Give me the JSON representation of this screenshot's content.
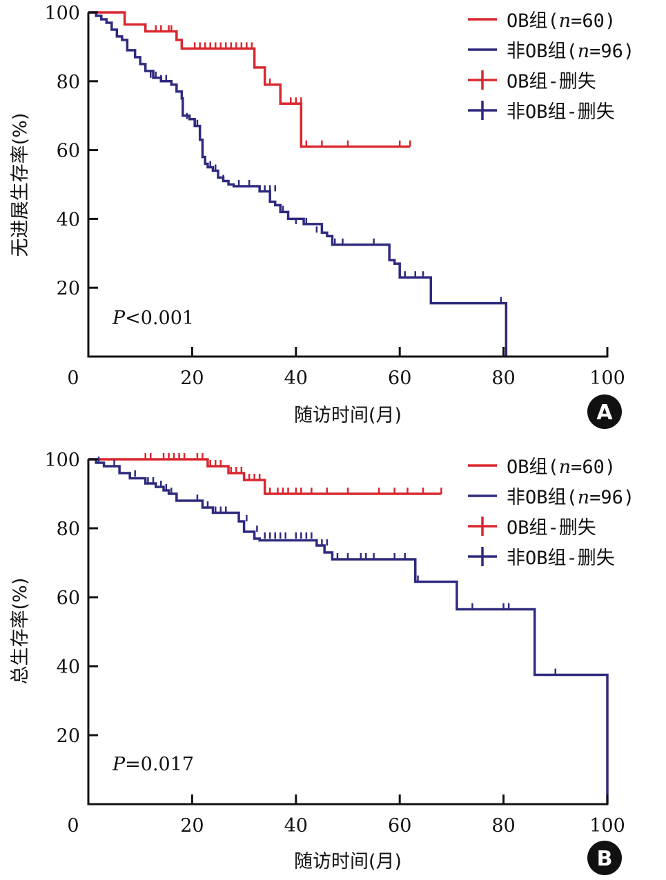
{
  "colors": {
    "ob": "#d9272e",
    "non_ob": "#2e2a7e",
    "axis": "#111111"
  },
  "chart_data": [
    {
      "type": "line",
      "subtype": "kaplan-meier",
      "panel_label": "A",
      "ylabel": "无进展生存率(%)",
      "xlabel": "随访时间(月)",
      "xlim": [
        0,
        100
      ],
      "ylim": [
        0,
        100
      ],
      "x_ticks": [
        0,
        20,
        40,
        60,
        80,
        100
      ],
      "x_tick_labels": [
        "0",
        "20",
        "40",
        "60",
        "80",
        "100"
      ],
      "y_ticks": [
        20,
        40,
        60,
        80,
        100
      ],
      "y_tick_labels": [
        "20",
        "40",
        "60",
        "80",
        "100"
      ],
      "annotation": {
        "p_label": "P",
        "p_rest": "<0.001"
      },
      "legend": {
        "position": "top-right",
        "entries": [
          {
            "label": "OB组(n=60)",
            "prefix": "OB组(",
            "italic": "n",
            "suffix": "=60)",
            "kind": "line",
            "series": "ob"
          },
          {
            "label": "非OB组(n=96)",
            "prefix": "非OB组(",
            "italic": "n",
            "suffix": "=96)",
            "kind": "line",
            "series": "non_ob"
          },
          {
            "label": "OB组-删失",
            "prefix": "OB组-删失",
            "italic": "",
            "suffix": "",
            "kind": "cross",
            "series": "ob"
          },
          {
            "label": "非OB组-删失",
            "prefix": "非OB组-删失",
            "italic": "",
            "suffix": "",
            "kind": "cross",
            "series": "non_ob"
          }
        ]
      },
      "series": [
        {
          "name": "OB组",
          "key": "ob",
          "steps": [
            [
              0,
              100
            ],
            [
              7,
              96.5
            ],
            [
              11,
              94.5
            ],
            [
              17,
              92
            ],
            [
              18,
              89.5
            ],
            [
              32,
              84
            ],
            [
              34,
              79
            ],
            [
              37,
              73.5
            ],
            [
              41,
              61
            ]
          ],
          "end": 62,
          "censored": [
            [
              13,
              94.5
            ],
            [
              14,
              94.5
            ],
            [
              15.5,
              94.5
            ],
            [
              16,
              94.5
            ],
            [
              20.5,
              89.5
            ],
            [
              21.5,
              89.5
            ],
            [
              22.5,
              89.5
            ],
            [
              23.5,
              89.5
            ],
            [
              24.5,
              89.5
            ],
            [
              25.5,
              89.5
            ],
            [
              26.5,
              89.5
            ],
            [
              27.5,
              89.5
            ],
            [
              28.5,
              89.5
            ],
            [
              29.5,
              89.5
            ],
            [
              30.5,
              89.5
            ],
            [
              31.5,
              89.5
            ],
            [
              35,
              79
            ],
            [
              39,
              73.5
            ],
            [
              40,
              73.5
            ],
            [
              41,
              73.5
            ],
            [
              42,
              61
            ],
            [
              45,
              61
            ],
            [
              50,
              61
            ],
            [
              60,
              61
            ],
            [
              62,
              61
            ]
          ]
        },
        {
          "name": "非OB组",
          "key": "non_ob",
          "steps": [
            [
              0,
              100
            ],
            [
              1.5,
              99
            ],
            [
              2.5,
              98
            ],
            [
              3.5,
              97
            ],
            [
              4.5,
              95
            ],
            [
              5.5,
              93
            ],
            [
              6.5,
              92
            ],
            [
              7.5,
              89
            ],
            [
              9,
              87
            ],
            [
              10,
              85
            ],
            [
              11,
              83
            ],
            [
              12.5,
              81
            ],
            [
              14,
              80
            ],
            [
              16,
              79
            ],
            [
              17,
              77
            ],
            [
              18,
              75
            ],
            [
              18.2,
              70
            ],
            [
              19.5,
              69
            ],
            [
              20.5,
              67
            ],
            [
              21.5,
              63
            ],
            [
              22,
              58
            ],
            [
              22.5,
              56
            ],
            [
              23,
              55
            ],
            [
              24,
              54
            ],
            [
              25,
              52
            ],
            [
              26,
              51
            ],
            [
              27,
              50
            ],
            [
              28,
              49.5
            ],
            [
              33,
              48
            ],
            [
              35,
              45
            ],
            [
              36,
              44
            ],
            [
              37,
              42
            ],
            [
              38.5,
              40
            ],
            [
              41.5,
              38.5
            ],
            [
              45,
              36
            ],
            [
              46,
              35
            ],
            [
              47,
              32.5
            ],
            [
              54,
              32.5
            ],
            [
              58,
              28
            ],
            [
              59,
              27
            ],
            [
              60,
              23
            ],
            [
              66,
              15.5
            ],
            [
              80.5,
              0
            ]
          ],
          "end": 80.5,
          "censored": [
            [
              12,
              81
            ],
            [
              13,
              81
            ],
            [
              14,
              80
            ],
            [
              15,
              80
            ],
            [
              19,
              69
            ],
            [
              21,
              67
            ],
            [
              23.5,
              55
            ],
            [
              24.5,
              54
            ],
            [
              26,
              51
            ],
            [
              29,
              49.5
            ],
            [
              31,
              49.5
            ],
            [
              34,
              48
            ],
            [
              35,
              48
            ],
            [
              36,
              48
            ],
            [
              37.5,
              42
            ],
            [
              40,
              38.5
            ],
            [
              42,
              38.5
            ],
            [
              44,
              36
            ],
            [
              47.5,
              32.5
            ],
            [
              49,
              32.5
            ],
            [
              55,
              32.5
            ],
            [
              61,
              23
            ],
            [
              63,
              23
            ],
            [
              64.5,
              23
            ],
            [
              79.5,
              15.5
            ]
          ]
        }
      ]
    },
    {
      "type": "line",
      "subtype": "kaplan-meier",
      "panel_label": "B",
      "ylabel": "总生存率(%)",
      "xlabel": "随访时间(月)",
      "xlim": [
        0,
        100
      ],
      "ylim": [
        0,
        100
      ],
      "x_ticks": [
        0,
        20,
        40,
        60,
        80,
        100
      ],
      "x_tick_labels": [
        "0",
        "20",
        "40",
        "60",
        "80",
        "100"
      ],
      "y_ticks": [
        20,
        40,
        60,
        80,
        100
      ],
      "y_tick_labels": [
        "20",
        "40",
        "60",
        "80",
        "100"
      ],
      "annotation": {
        "p_label": "P",
        "p_rest": "=0.017"
      },
      "legend": {
        "position": "top-right",
        "entries": [
          {
            "label": "OB组(n=60)",
            "prefix": "OB组(",
            "italic": "n",
            "suffix": "=60)",
            "kind": "line",
            "series": "ob"
          },
          {
            "label": "非OB组(n=96)",
            "prefix": "非OB组(",
            "italic": "n",
            "suffix": "=96)",
            "kind": "line",
            "series": "non_ob"
          },
          {
            "label": "OB组-删失",
            "prefix": "OB组-删失",
            "italic": "",
            "suffix": "",
            "kind": "cross",
            "series": "ob"
          },
          {
            "label": "非OB组-删失",
            "prefix": "非OB组-删失",
            "italic": "",
            "suffix": "",
            "kind": "cross",
            "series": "non_ob"
          }
        ]
      },
      "series": [
        {
          "name": "OB组",
          "key": "ob",
          "steps": [
            [
              0,
              100
            ],
            [
              23,
              98
            ],
            [
              27,
              96
            ],
            [
              30,
              94
            ],
            [
              34,
              90
            ]
          ],
          "end": 68,
          "censored": [
            [
              11,
              100
            ],
            [
              12,
              100
            ],
            [
              14.5,
              100
            ],
            [
              15.5,
              100
            ],
            [
              16.5,
              100
            ],
            [
              17.5,
              100
            ],
            [
              18.5,
              100
            ],
            [
              21,
              100
            ],
            [
              22,
              100
            ],
            [
              23.5,
              98
            ],
            [
              24.5,
              98
            ],
            [
              25.5,
              98
            ],
            [
              27.5,
              96
            ],
            [
              28.5,
              96
            ],
            [
              29.5,
              96
            ],
            [
              31,
              94
            ],
            [
              32,
              94
            ],
            [
              33,
              94
            ],
            [
              35,
              90
            ],
            [
              36.5,
              90
            ],
            [
              37.5,
              90
            ],
            [
              38.5,
              90
            ],
            [
              40,
              90
            ],
            [
              41,
              90
            ],
            [
              43,
              90
            ],
            [
              46,
              90
            ],
            [
              50,
              90
            ],
            [
              56,
              90
            ],
            [
              59,
              90
            ],
            [
              61.5,
              90
            ],
            [
              64.5,
              90
            ],
            [
              68,
              90
            ]
          ]
        },
        {
          "name": "非OB组",
          "key": "non_ob",
          "steps": [
            [
              0,
              100
            ],
            [
              1.5,
              99
            ],
            [
              3,
              98
            ],
            [
              6,
              96
            ],
            [
              8,
              94.5
            ],
            [
              11,
              93
            ],
            [
              13,
              92
            ],
            [
              14.5,
              91
            ],
            [
              15.5,
              90
            ],
            [
              17,
              88
            ],
            [
              22,
              86
            ],
            [
              24,
              84.5
            ],
            [
              29,
              82
            ],
            [
              30,
              79
            ],
            [
              32,
              77
            ],
            [
              33,
              76.5
            ],
            [
              44,
              75
            ],
            [
              45.5,
              73
            ],
            [
              47,
              71
            ],
            [
              63,
              64.5
            ],
            [
              71,
              56.5
            ],
            [
              86,
              37.5
            ],
            [
              100,
              0
            ]
          ],
          "end": 100,
          "censored": [
            [
              2,
              99
            ],
            [
              5,
              98
            ],
            [
              9,
              95
            ],
            [
              11.5,
              93
            ],
            [
              12.5,
              93
            ],
            [
              14,
              92
            ],
            [
              15,
              91
            ],
            [
              16,
              90
            ],
            [
              21,
              88
            ],
            [
              23,
              86
            ],
            [
              24.5,
              84.5
            ],
            [
              25.5,
              84.5
            ],
            [
              26.5,
              84.5
            ],
            [
              30.5,
              82
            ],
            [
              32.5,
              79
            ],
            [
              34,
              77
            ],
            [
              35,
              77
            ],
            [
              36,
              77
            ],
            [
              37,
              77
            ],
            [
              38,
              77
            ],
            [
              40,
              77
            ],
            [
              41,
              77
            ],
            [
              42,
              77
            ],
            [
              43,
              77
            ],
            [
              45,
              75
            ],
            [
              46,
              75
            ],
            [
              48,
              71
            ],
            [
              50,
              71
            ],
            [
              52.5,
              71
            ],
            [
              53.5,
              71
            ],
            [
              55,
              71
            ],
            [
              59,
              71
            ],
            [
              61,
              71
            ],
            [
              63.5,
              64.5
            ],
            [
              74,
              56.5
            ],
            [
              80,
              56.5
            ],
            [
              81,
              56.5
            ],
            [
              90,
              37.5
            ]
          ]
        }
      ]
    }
  ]
}
